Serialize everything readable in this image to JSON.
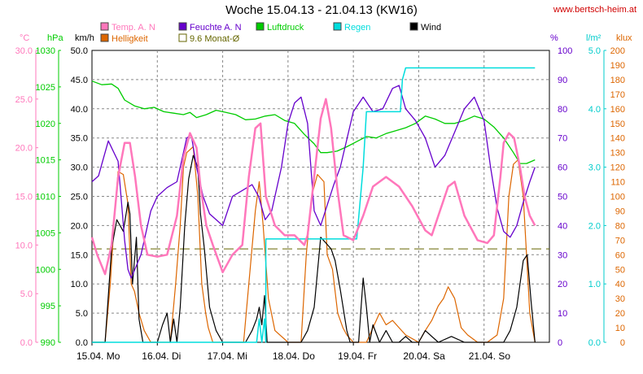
{
  "header": {
    "title": "Woche 15.04.13 - 21.04.13 (KW16)",
    "site": "www.bertsch-heim.at"
  },
  "chart_data": {
    "type": "line",
    "title": "Woche 15.04.13 - 21.04.13 (KW16)",
    "x_labels": [
      "15.04. Mo",
      "16.04. Di",
      "17.04. Mi",
      "18.04. Do",
      "19.04. Fr",
      "20.04. Sa",
      "21.04. So"
    ],
    "x_range_days": [
      0,
      7
    ],
    "grid": true,
    "colors": {
      "temp": "#ff77bb",
      "feuchte": "#6600cc",
      "luftdruck": "#00cc00",
      "regen": "#00dddd",
      "wind": "#000000",
      "helligkeit": "#dd6600",
      "monat": "#666600"
    },
    "axes": [
      {
        "key": "temp",
        "unit": "°C",
        "min": 0,
        "max": 30,
        "ticks": [
          "0.0",
          "5.0",
          "10.0",
          "15.0",
          "20.0",
          "25.0",
          "30.0"
        ],
        "color": "#ff77bb"
      },
      {
        "key": "luftdruck",
        "unit": "hPa",
        "min": 990,
        "max": 1030,
        "ticks": [
          "990",
          "995",
          "1000",
          "1005",
          "1010",
          "1015",
          "1020",
          "1025",
          "1030"
        ],
        "color": "#00cc00"
      },
      {
        "key": "wind",
        "unit": "km/h",
        "min": 0,
        "max": 50,
        "ticks": [
          "0.0",
          "5.0",
          "10.0",
          "15.0",
          "20.0",
          "25.0",
          "30.0",
          "35.0",
          "40.0",
          "45.0",
          "50.0"
        ],
        "color": "#000000"
      },
      {
        "key": "feuchte",
        "unit": "%",
        "min": 0,
        "max": 100,
        "ticks": [
          "0",
          "10",
          "20",
          "30",
          "40",
          "50",
          "60",
          "70",
          "80",
          "90",
          "100"
        ],
        "color": "#6600cc"
      },
      {
        "key": "regen",
        "unit": "l/m²",
        "min": 0,
        "max": 5,
        "ticks": [
          "0.0",
          "1.0",
          "2.0",
          "3.0",
          "4.0",
          "5.0"
        ],
        "color": "#00cccc"
      },
      {
        "key": "helligkeit",
        "unit": "klux",
        "min": 0,
        "max": 200,
        "ticks": [
          "0",
          "10",
          "20",
          "30",
          "40",
          "50",
          "60",
          "70",
          "80",
          "90",
          "100",
          "110",
          "120",
          "130",
          "140",
          "150",
          "160",
          "170",
          "180",
          "190",
          "200"
        ],
        "color": "#dd6600"
      }
    ],
    "legend": [
      {
        "key": "temp",
        "label": "Temp. A. N"
      },
      {
        "key": "feuchte",
        "label": "Feuchte A. N"
      },
      {
        "key": "luftdruck",
        "label": "Luftdruck"
      },
      {
        "key": "regen",
        "label": "Regen"
      },
      {
        "key": "wind",
        "label": "Wind"
      },
      {
        "key": "helligkeit",
        "label": "Helligkeit"
      },
      {
        "key": "monat",
        "label": "9.6 Monat-Ø"
      }
    ],
    "monthly_avg_temp": 9.6,
    "series": {
      "temp": {
        "x": [
          0.0,
          0.08,
          0.2,
          0.3,
          0.4,
          0.5,
          0.58,
          0.66,
          0.75,
          0.85,
          1.0,
          1.15,
          1.3,
          1.4,
          1.5,
          1.6,
          1.66,
          1.75,
          1.85,
          2.0,
          2.15,
          2.3,
          2.4,
          2.5,
          2.58,
          2.66,
          2.8,
          2.95,
          3.1,
          3.25,
          3.3,
          3.4,
          3.5,
          3.58,
          3.66,
          3.75,
          3.85,
          4.0,
          4.15,
          4.3,
          4.5,
          4.7,
          4.9,
          5.1,
          5.2,
          5.3,
          5.45,
          5.55,
          5.7,
          5.9,
          6.05,
          6.15,
          6.25,
          6.3,
          6.38,
          6.46,
          6.55,
          6.62,
          6.7,
          6.78
        ],
        "y": [
          10.8,
          9.0,
          7.0,
          10.0,
          17.0,
          20.5,
          20.5,
          17.0,
          12.0,
          9.0,
          8.8,
          9.0,
          13.0,
          19.0,
          21.5,
          20.0,
          16.0,
          12.0,
          10.0,
          7.2,
          9.0,
          10.0,
          17.0,
          22.0,
          22.5,
          15.0,
          12.0,
          11.0,
          11.0,
          10.0,
          11.0,
          17.0,
          23.0,
          25.0,
          22.0,
          16.0,
          11.0,
          10.5,
          13.0,
          16.0,
          17.0,
          16.0,
          14.0,
          11.5,
          11.0,
          13.0,
          16.0,
          16.5,
          13.0,
          10.5,
          10.2,
          11.0,
          17.0,
          20.5,
          21.5,
          21.0,
          18.0,
          15.0,
          13.0,
          12.0
        ]
      },
      "feuchte": {
        "x": [
          0.0,
          0.1,
          0.25,
          0.4,
          0.5,
          0.55,
          0.6,
          0.75,
          0.9,
          1.0,
          1.15,
          1.3,
          1.45,
          1.52,
          1.6,
          1.7,
          1.8,
          2.0,
          2.15,
          2.3,
          2.45,
          2.55,
          2.65,
          2.75,
          2.9,
          3.0,
          3.1,
          3.2,
          3.3,
          3.4,
          3.5,
          3.6,
          3.7,
          3.8,
          4.0,
          4.15,
          4.3,
          4.45,
          4.6,
          4.7,
          4.8,
          4.95,
          5.1,
          5.25,
          5.4,
          5.55,
          5.7,
          5.85,
          6.0,
          6.1,
          6.2,
          6.3,
          6.4,
          6.5,
          6.6,
          6.7,
          6.78
        ],
        "y": [
          55,
          57,
          69,
          62,
          35,
          25,
          22,
          30,
          45,
          50,
          53,
          55,
          70,
          71,
          60,
          50,
          44,
          40,
          50,
          52,
          54,
          50,
          42,
          45,
          60,
          75,
          82,
          84,
          75,
          45,
          40,
          47,
          54,
          60,
          79,
          84,
          79,
          80,
          87,
          88,
          80,
          76,
          70,
          60,
          64,
          72,
          80,
          84,
          76,
          60,
          46,
          38,
          36,
          40,
          48,
          55,
          60
        ]
      },
      "luftdruck": {
        "x": [
          0.0,
          0.15,
          0.3,
          0.4,
          0.5,
          0.65,
          0.8,
          0.95,
          1.1,
          1.25,
          1.4,
          1.5,
          1.6,
          1.75,
          1.9,
          2.05,
          2.2,
          2.35,
          2.5,
          2.65,
          2.8,
          2.95,
          3.1,
          3.25,
          3.4,
          3.5,
          3.6,
          3.75,
          3.9,
          4.05,
          4.2,
          4.35,
          4.5,
          4.65,
          4.8,
          4.95,
          5.1,
          5.25,
          5.4,
          5.55,
          5.7,
          5.85,
          6.0,
          6.15,
          6.3,
          6.45,
          6.55,
          6.65,
          6.78
        ],
        "y": [
          1025.8,
          1025.3,
          1025.4,
          1024.8,
          1023.2,
          1022.4,
          1022.0,
          1022.2,
          1021.6,
          1021.4,
          1021.2,
          1021.5,
          1020.8,
          1021.2,
          1021.8,
          1021.5,
          1021.2,
          1020.5,
          1020.6,
          1021.0,
          1021.2,
          1020.4,
          1020.0,
          1018.5,
          1017.2,
          1016.0,
          1016.0,
          1016.2,
          1016.8,
          1017.5,
          1018.2,
          1018.0,
          1018.6,
          1019.0,
          1019.4,
          1020.0,
          1021.0,
          1020.6,
          1020.0,
          1020.0,
          1020.4,
          1021.0,
          1020.6,
          1019.5,
          1018.0,
          1016.0,
          1014.5,
          1014.5,
          1015.0
        ]
      },
      "regen": {
        "x": [
          0.0,
          2.52,
          2.56,
          2.6,
          2.64,
          2.66,
          2.66,
          4.05,
          4.07,
          4.15,
          4.2,
          4.5,
          4.6,
          4.72,
          4.75,
          4.8,
          4.84,
          6.78
        ],
        "y": [
          0.0,
          0.0,
          0.4,
          0.0,
          0.4,
          0.0,
          1.77,
          1.77,
          2.0,
          3.0,
          3.95,
          3.95,
          3.95,
          3.95,
          4.5,
          4.7,
          4.7,
          4.7
        ]
      },
      "wind": {
        "x": [
          0.0,
          0.2,
          0.25,
          0.3,
          0.38,
          0.48,
          0.55,
          0.58,
          0.62,
          0.68,
          0.72,
          0.78,
          0.85,
          1.0,
          1.08,
          1.15,
          1.2,
          1.25,
          1.3,
          1.35,
          1.42,
          1.48,
          1.55,
          1.62,
          1.66,
          1.72,
          1.8,
          1.9,
          2.0,
          2.1,
          2.2,
          2.35,
          2.45,
          2.52,
          2.56,
          2.6,
          2.64,
          2.68,
          2.72,
          2.8,
          2.95,
          3.1,
          3.2,
          3.3,
          3.4,
          3.5,
          3.58,
          3.66,
          3.72,
          3.8,
          3.9,
          3.95,
          4.02,
          4.08,
          4.15,
          4.2,
          4.25,
          4.3,
          4.4,
          4.5,
          4.6,
          4.7,
          4.8,
          4.9,
          5.0,
          5.1,
          5.3,
          5.5,
          5.7,
          5.85,
          6.0,
          6.1,
          6.2,
          6.3,
          6.4,
          6.5,
          6.55,
          6.6,
          6.66,
          6.72,
          6.78
        ],
        "y": [
          0,
          0,
          8,
          16,
          21,
          19,
          24,
          22,
          10,
          18,
          4,
          0,
          0,
          0,
          3,
          5,
          0,
          4,
          0,
          6,
          20,
          28,
          32,
          30,
          22,
          16,
          6,
          2,
          0,
          0,
          0,
          0,
          2,
          4,
          6,
          3,
          8,
          0,
          0,
          0,
          0,
          0,
          0,
          2,
          6,
          18,
          17,
          16,
          14,
          9,
          2,
          0,
          0,
          0,
          11,
          6,
          0,
          3,
          0,
          2,
          0,
          0,
          1,
          0,
          0,
          2,
          0,
          1,
          0,
          0,
          0,
          0,
          0,
          0,
          2,
          6,
          10,
          14,
          15,
          7,
          0
        ]
      },
      "helligkeit": {
        "x": [
          0.0,
          0.2,
          0.28,
          0.35,
          0.4,
          0.48,
          0.55,
          0.6,
          0.65,
          0.72,
          0.8,
          0.9,
          1.0,
          1.2,
          1.28,
          1.35,
          1.4,
          1.45,
          1.55,
          1.62,
          1.68,
          1.74,
          1.78,
          1.85,
          1.95,
          2.05,
          2.2,
          2.32,
          2.4,
          2.5,
          2.56,
          2.62,
          2.7,
          2.8,
          3.0,
          3.2,
          3.28,
          3.36,
          3.45,
          3.55,
          3.6,
          3.68,
          3.76,
          3.84,
          3.9,
          4.0,
          4.2,
          4.3,
          4.4,
          4.5,
          4.6,
          4.7,
          4.8,
          5.0,
          5.1,
          5.2,
          5.3,
          5.38,
          5.45,
          5.55,
          5.65,
          5.75,
          5.9,
          6.05,
          6.2,
          6.3,
          6.38,
          6.45,
          6.52,
          6.6,
          6.65,
          6.7,
          6.78
        ],
        "y": [
          0,
          0,
          40,
          90,
          117,
          115,
          95,
          40,
          35,
          20,
          8,
          0,
          0,
          0,
          40,
          80,
          120,
          130,
          134,
          100,
          40,
          20,
          10,
          0,
          0,
          0,
          0,
          0,
          40,
          90,
          110,
          80,
          30,
          8,
          0,
          0,
          60,
          100,
          115,
          110,
          60,
          50,
          20,
          10,
          5,
          0,
          0,
          10,
          20,
          12,
          15,
          10,
          5,
          0,
          8,
          15,
          25,
          30,
          38,
          30,
          10,
          5,
          0,
          0,
          5,
          30,
          100,
          122,
          125,
          100,
          60,
          20,
          0
        ]
      }
    }
  }
}
